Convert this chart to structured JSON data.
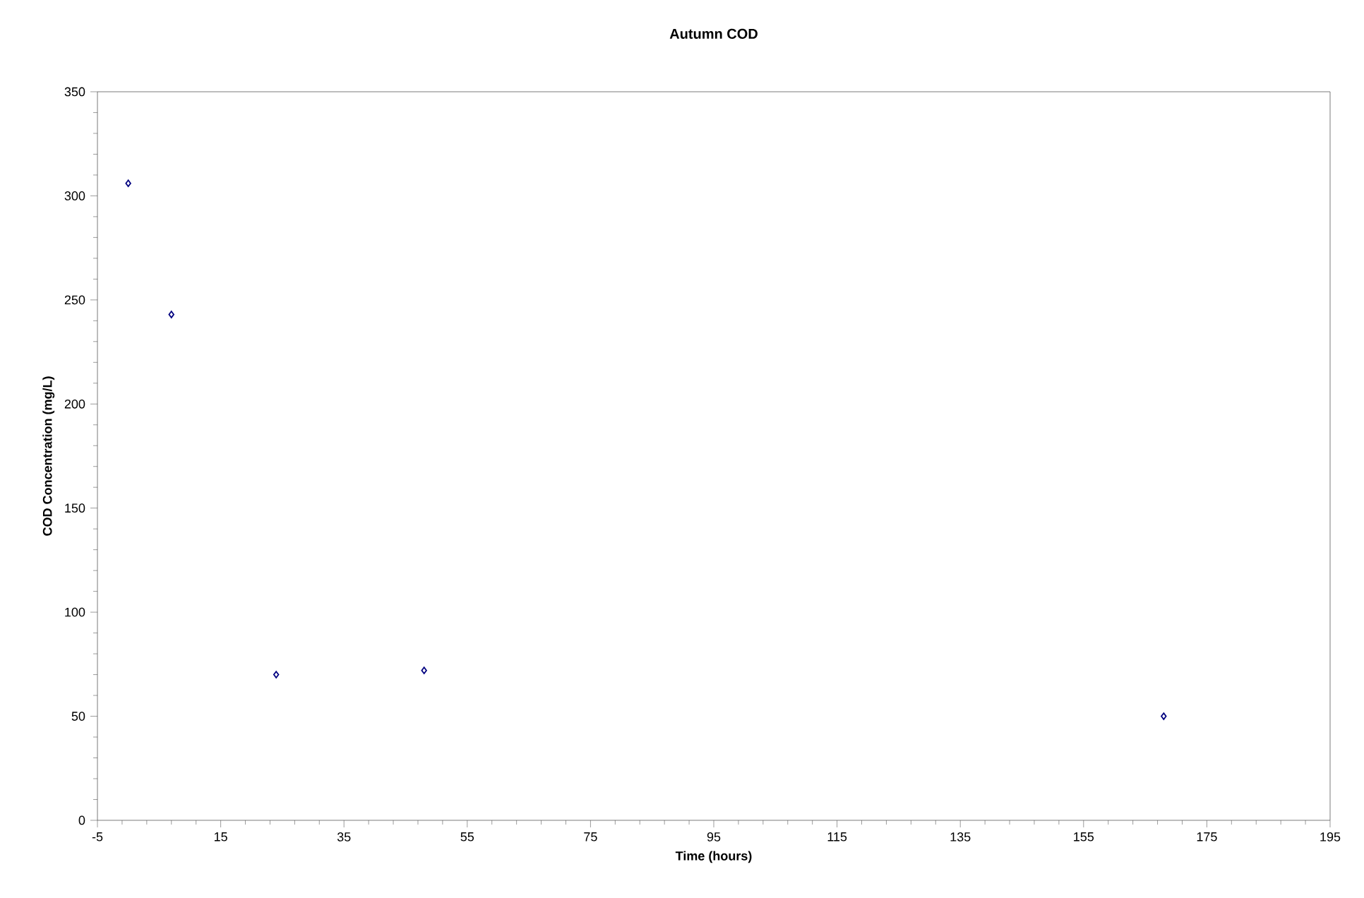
{
  "chart_data": {
    "type": "scatter",
    "title": "Autumn COD",
    "xlabel": "Time (hours)",
    "ylabel": "COD Concentration (mg/L)",
    "x": [
      0,
      7,
      24,
      48,
      168
    ],
    "series": [
      {
        "color": "#000080",
        "values": [
          306,
          243,
          70,
          72,
          50
        ]
      }
    ],
    "marker": "diamond",
    "xlim": [
      -5,
      195
    ],
    "xticks": [
      -5,
      15,
      35,
      55,
      75,
      95,
      115,
      135,
      155,
      175,
      195
    ],
    "ylim": [
      0,
      350
    ],
    "yticks": [
      0,
      50,
      100,
      150,
      200,
      250,
      300,
      350
    ]
  }
}
